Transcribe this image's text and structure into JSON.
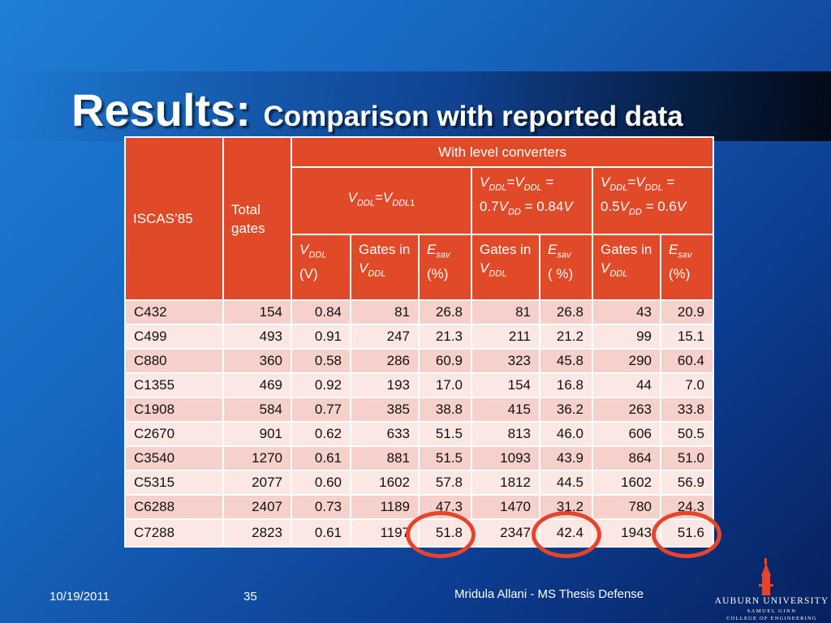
{
  "slide": {
    "title_main": "Results: ",
    "title_sub": "Comparison with reported data"
  },
  "table": {
    "header": {
      "col_iscas": "ISCAS’85",
      "col_total": "Total gates",
      "group": "With level converters",
      "subgroups": [
        {
          "parts": [
            [
              "V",
              "DDL"
            ],
            [
              "=V",
              "DDL1"
            ]
          ]
        },
        {
          "parts": [
            [
              "V",
              "DDL"
            ],
            [
              "=V",
              "DDL"
            ]
          ],
          "tail": " = 0.7V",
          "tail_sub": "DD",
          "tail2": " = 0.84V"
        },
        {
          "parts": [
            [
              "V",
              "DDL"
            ],
            [
              "=V",
              "DDL"
            ]
          ],
          "tail": " = 0.5V",
          "tail_sub": "DD",
          "tail2": " = 0.6V"
        }
      ],
      "leaf": {
        "vddl_unit": "(V)",
        "gates_in": "Gates in",
        "esav_pct": "(%)",
        "esav_pct_spaced": "( %)"
      }
    },
    "rows": [
      [
        "C432",
        "154",
        "0.84",
        "81",
        "26.8",
        "81",
        "26.8",
        "43",
        "20.9"
      ],
      [
        "C499",
        "493",
        "0.91",
        "247",
        "21.3",
        "211",
        "21.2",
        "99",
        "15.1"
      ],
      [
        "C880",
        "360",
        "0.58",
        "286",
        "60.9",
        "323",
        "45.8",
        "290",
        "60.4"
      ],
      [
        "C1355",
        "469",
        "0.92",
        "193",
        "17.0",
        "154",
        "16.8",
        "44",
        "7.0"
      ],
      [
        "C1908",
        "584",
        "0.77",
        "385",
        "38.8",
        "415",
        "36.2",
        "263",
        "33.8"
      ],
      [
        "C2670",
        "901",
        "0.62",
        "633",
        "51.5",
        "813",
        "46.0",
        "606",
        "50.5"
      ],
      [
        "C3540",
        "1270",
        "0.61",
        "881",
        "51.5",
        "1093",
        "43.9",
        "864",
        "51.0"
      ],
      [
        "C5315",
        "2077",
        "0.60",
        "1602",
        "57.8",
        "1812",
        "44.5",
        "1602",
        "56.9"
      ],
      [
        "C6288",
        "2407",
        "0.73",
        "1189",
        "47.3",
        "1470",
        "31.2",
        "780",
        "24.3"
      ],
      [
        "C7288",
        "2823",
        "0.61",
        "1197",
        "51.8",
        "2347",
        "42.4",
        "1943",
        "51.6"
      ]
    ]
  },
  "footer": {
    "date": "10/19/2011",
    "page": "35",
    "author": "Mridula Allani - MS Thesis Defense"
  },
  "logo": {
    "line1": "AUBURN UNIVERSITY",
    "line2": "SAMUEL GINN",
    "line3": "COLLEGE OF ENGINEERING",
    "color": "#e8442a"
  },
  "highlight_color": "#e8442a"
}
